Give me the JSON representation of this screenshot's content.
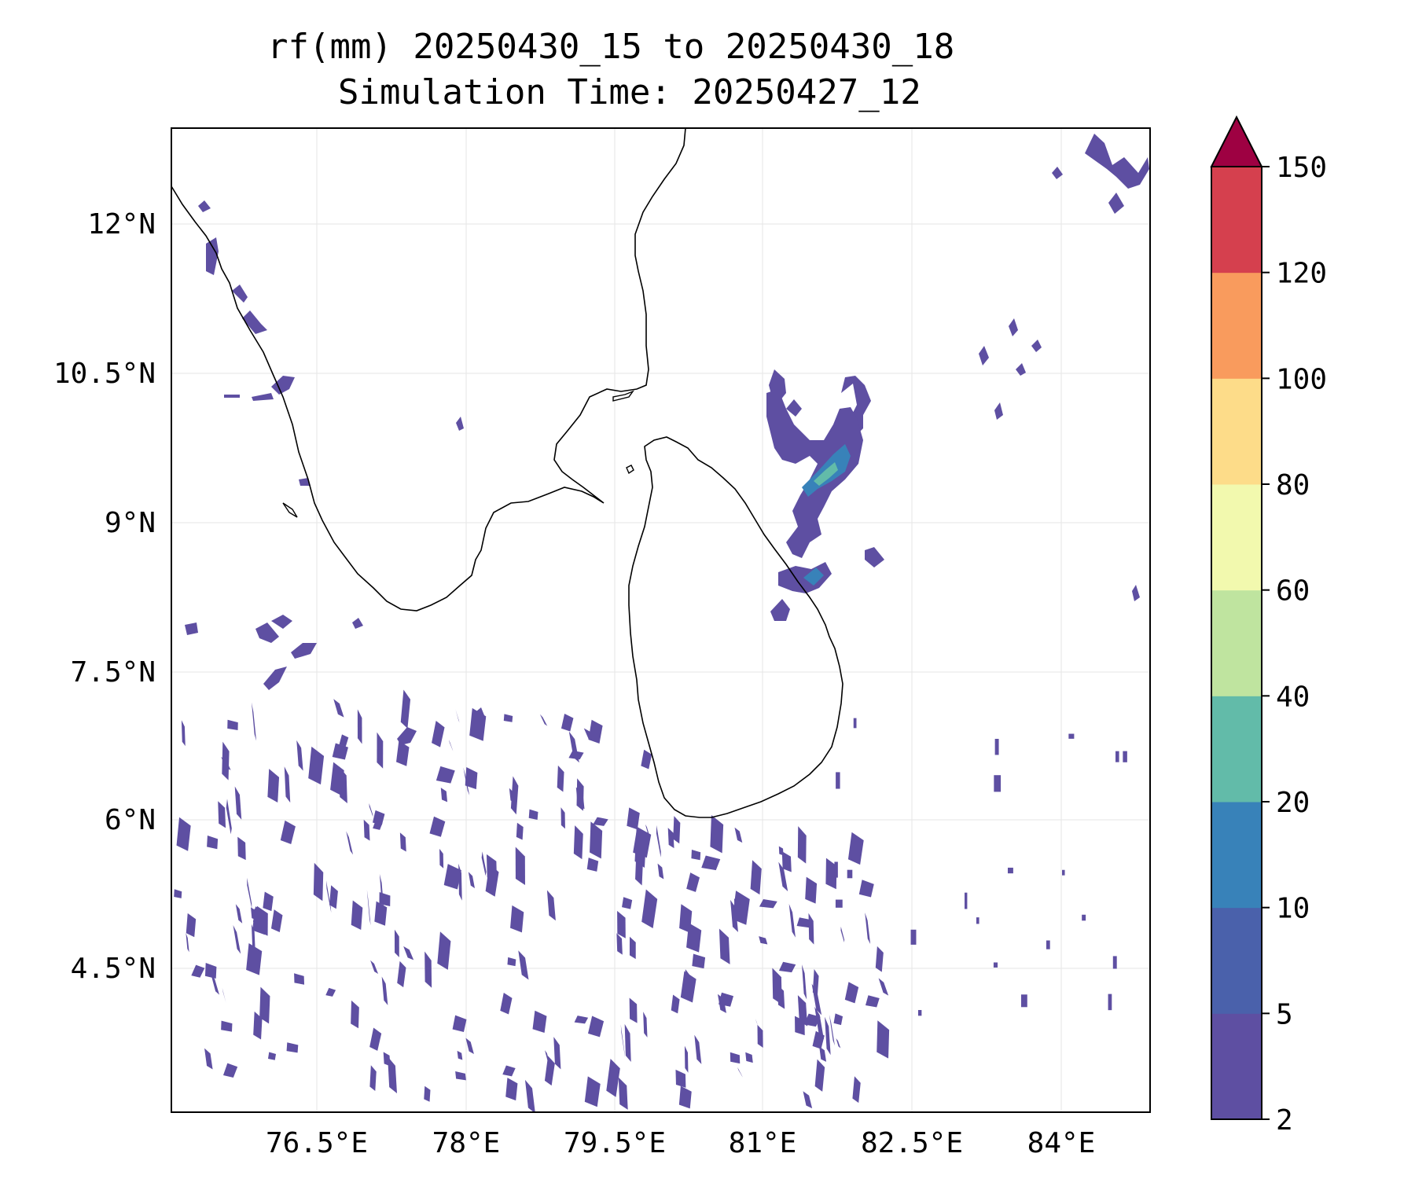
{
  "title": {
    "line1": "rf(mm) 20250430_15 to 20250430_18",
    "line2": "Simulation Time: 20250427_12"
  },
  "map": {
    "lon_ticks": [
      "76.5°E",
      "78°E",
      "79.5°E",
      "81°E",
      "82.5°E",
      "84°E"
    ],
    "lat_ticks": [
      "12°N",
      "10.5°N",
      "9°N",
      "7.5°N",
      "6°N",
      "4.5°N"
    ],
    "grid": true,
    "coastline_color": "#000000",
    "rain_colors": [
      "#5e4fa2",
      "#4a61ab",
      "#3882b9",
      "#62bba9",
      "#bfe49f",
      "#f2f9ae",
      "#fddc89",
      "#f99b5d",
      "#d5404e",
      "#9e0142"
    ]
  },
  "colorbar": {
    "levels": [
      "2",
      "5",
      "10",
      "20",
      "40",
      "60",
      "80",
      "100",
      "120",
      "150"
    ],
    "colors": [
      "#5e4fa2",
      "#4a61ab",
      "#3882b9",
      "#62bba9",
      "#bfe49f",
      "#f2f9ae",
      "#fddc89",
      "#f99b5d",
      "#d5404e"
    ],
    "extend_color": "#9e0142"
  }
}
